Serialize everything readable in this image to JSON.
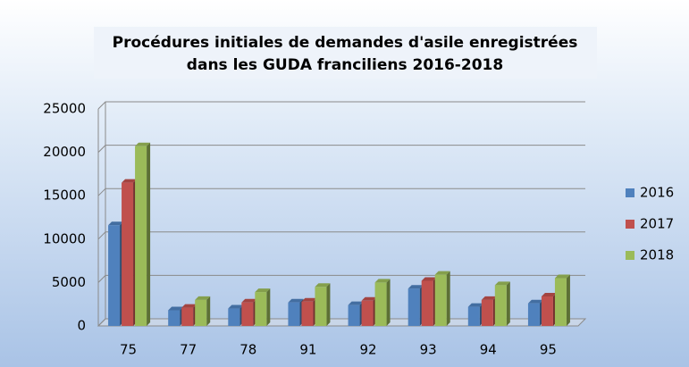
{
  "chart_data": {
    "type": "bar",
    "title": [
      "Procédures initiales de demandes d'asile enregistrées",
      "dans les GUDA franciliens 2016-2018"
    ],
    "categories": [
      "75",
      "77",
      "78",
      "91",
      "92",
      "93",
      "94",
      "95"
    ],
    "series": [
      {
        "name": "2016",
        "color": "#4f81bd",
        "values": [
          11600,
          1800,
          2000,
          2700,
          2400,
          4300,
          2200,
          2600
        ]
      },
      {
        "name": "2017",
        "color": "#c0504d",
        "values": [
          16500,
          2100,
          2700,
          2800,
          2900,
          5200,
          3000,
          3400
        ]
      },
      {
        "name": "2018",
        "color": "#9bbb59",
        "values": [
          20700,
          3000,
          3900,
          4500,
          5000,
          5900,
          4700,
          5500
        ]
      }
    ],
    "ylim": [
      0,
      25000
    ],
    "yticks": [
      0,
      5000,
      10000,
      15000,
      20000,
      25000
    ],
    "grid": true,
    "legend": "right"
  }
}
